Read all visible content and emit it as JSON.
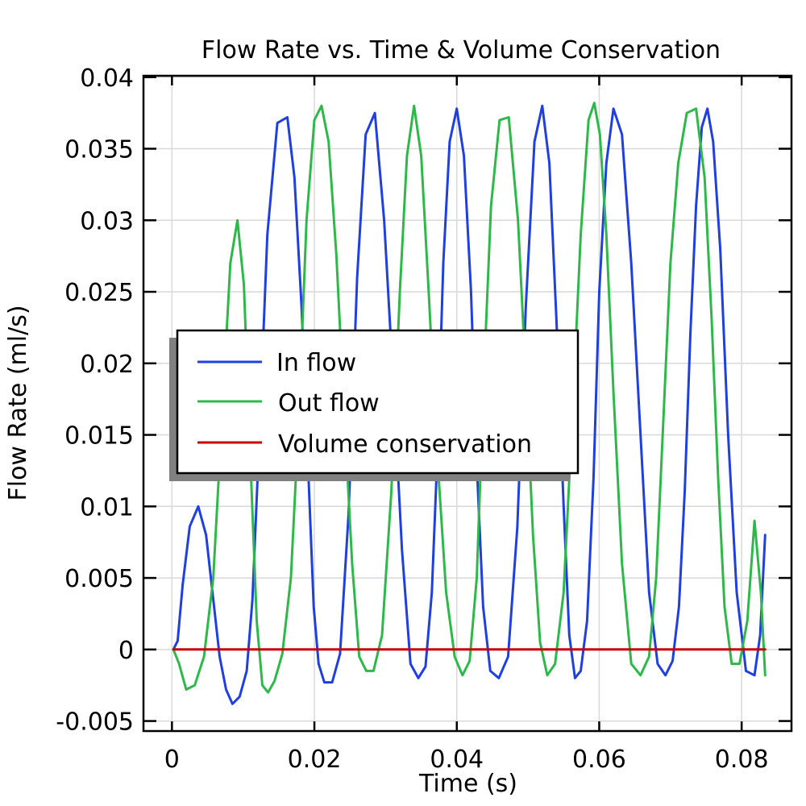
{
  "chart_data": {
    "type": "line",
    "title": "Flow Rate vs. Time & Volume Conservation",
    "xlabel": "Time (s)",
    "ylabel": "Flow Rate (ml/s)",
    "xlim": [
      -0.004,
      0.087
    ],
    "ylim": [
      -0.0057,
      0.0401
    ],
    "x_ticks": [
      0,
      0.02,
      0.04,
      0.06,
      0.08
    ],
    "x_tick_labels": [
      "0",
      "0.02",
      "0.04",
      "0.06",
      "0.08"
    ],
    "y_ticks": [
      -0.005,
      0,
      0.005,
      0.01,
      0.015,
      0.02,
      0.025,
      0.03,
      0.035,
      0.04
    ],
    "y_tick_labels": [
      "-0.005",
      "0",
      "0.005",
      "0.01",
      "0.015",
      "0.02",
      "0.025",
      "0.03",
      "0.035",
      "0.04"
    ],
    "grid": true,
    "legend_position": "center-left",
    "series": [
      {
        "name": "In flow",
        "color": "#1f3fe0",
        "x": [
          0.0002,
          0.0008,
          0.0015,
          0.0025,
          0.0037,
          0.0048,
          0.0058,
          0.0067,
          0.0076,
          0.0085,
          0.0095,
          0.0105,
          0.0113,
          0.0122,
          0.0134,
          0.0148,
          0.0162,
          0.0172,
          0.0182,
          0.0191,
          0.0199,
          0.0206,
          0.0214,
          0.0225,
          0.0236,
          0.0248,
          0.026,
          0.0272,
          0.0285,
          0.0298,
          0.0311,
          0.0323,
          0.0335,
          0.0346,
          0.0356,
          0.0365,
          0.0373,
          0.0381,
          0.039,
          0.04,
          0.041,
          0.042,
          0.0428,
          0.0437,
          0.0447,
          0.0459,
          0.0472,
          0.0485,
          0.0497,
          0.0509,
          0.052,
          0.053,
          0.054,
          0.055,
          0.0558,
          0.0566,
          0.0574,
          0.0583,
          0.0592,
          0.06,
          0.061,
          0.062,
          0.0632,
          0.0645,
          0.0658,
          0.067,
          0.0682,
          0.0693,
          0.0703,
          0.0712,
          0.072,
          0.0728,
          0.0736,
          0.0744,
          0.0752,
          0.076,
          0.077,
          0.0781,
          0.0793,
          0.0806,
          0.0818,
          0.0826,
          0.0833
        ],
        "y": [
          0.0,
          0.0006,
          0.0045,
          0.0086,
          0.01,
          0.008,
          0.0035,
          -0.0005,
          -0.0028,
          -0.0038,
          -0.0033,
          -0.0015,
          0.0035,
          0.014,
          0.029,
          0.0368,
          0.0372,
          0.033,
          0.024,
          0.013,
          0.003,
          -0.001,
          -0.0023,
          -0.0023,
          -0.0003,
          0.0095,
          0.026,
          0.036,
          0.0375,
          0.03,
          0.0185,
          0.007,
          -0.001,
          -0.002,
          -0.0012,
          0.004,
          0.014,
          0.027,
          0.0355,
          0.0378,
          0.0345,
          0.025,
          0.013,
          0.003,
          -0.0015,
          -0.002,
          -0.0005,
          0.0085,
          0.024,
          0.0355,
          0.038,
          0.034,
          0.023,
          0.01,
          0.001,
          -0.002,
          -0.0015,
          0.002,
          0.012,
          0.025,
          0.034,
          0.0378,
          0.036,
          0.027,
          0.015,
          0.004,
          -0.001,
          -0.0018,
          -0.0008,
          0.003,
          0.011,
          0.022,
          0.031,
          0.0365,
          0.0378,
          0.0355,
          0.028,
          0.015,
          0.004,
          -0.0015,
          -0.0018,
          0.001,
          0.008
        ]
      },
      {
        "name": "Out flow",
        "color": "#2eb84a",
        "x": [
          0.0002,
          0.001,
          0.002,
          0.0032,
          0.0045,
          0.0058,
          0.007,
          0.0082,
          0.0092,
          0.0101,
          0.011,
          0.0119,
          0.0127,
          0.0135,
          0.0144,
          0.0155,
          0.0167,
          0.0178,
          0.0189,
          0.02,
          0.021,
          0.022,
          0.0231,
          0.0243,
          0.0253,
          0.0263,
          0.0273,
          0.0283,
          0.0295,
          0.0308,
          0.032,
          0.033,
          0.034,
          0.035,
          0.036,
          0.0372,
          0.0385,
          0.0397,
          0.0408,
          0.0418,
          0.0428,
          0.0438,
          0.0448,
          0.046,
          0.0473,
          0.0486,
          0.0497,
          0.0507,
          0.0517,
          0.0527,
          0.0538,
          0.055,
          0.0562,
          0.0574,
          0.0585,
          0.0593,
          0.0601,
          0.061,
          0.062,
          0.0632,
          0.0645,
          0.0658,
          0.067,
          0.068,
          0.069,
          0.07,
          0.0711,
          0.0723,
          0.0736,
          0.0748,
          0.0758,
          0.0767,
          0.0776,
          0.0786,
          0.0797,
          0.0808,
          0.0818,
          0.0827,
          0.0833
        ],
        "y": [
          0.0,
          -0.001,
          -0.0028,
          -0.0025,
          -0.0005,
          0.005,
          0.016,
          0.027,
          0.03,
          0.0255,
          0.0135,
          0.002,
          -0.0025,
          -0.003,
          -0.0022,
          -0.0003,
          0.005,
          0.016,
          0.03,
          0.037,
          0.038,
          0.0355,
          0.0275,
          0.0155,
          0.006,
          -0.0005,
          -0.0015,
          -0.0015,
          0.001,
          0.011,
          0.025,
          0.0345,
          0.038,
          0.0345,
          0.0255,
          0.014,
          0.004,
          -0.0005,
          -0.0018,
          -0.0008,
          0.005,
          0.019,
          0.031,
          0.037,
          0.0372,
          0.03,
          0.019,
          0.008,
          0.0005,
          -0.0018,
          -0.001,
          0.004,
          0.016,
          0.029,
          0.037,
          0.0382,
          0.036,
          0.029,
          0.018,
          0.006,
          -0.001,
          -0.0018,
          -0.0005,
          0.005,
          0.016,
          0.027,
          0.034,
          0.0375,
          0.0378,
          0.033,
          0.023,
          0.012,
          0.003,
          -0.001,
          -0.001,
          0.002,
          0.009,
          0.004,
          -0.0018
        ]
      },
      {
        "name": "Volume conservation",
        "color": "#c8000a",
        "x": [
          0.0002,
          0.02,
          0.04,
          0.06,
          0.0833
        ],
        "y": [
          0,
          0,
          0,
          0,
          0
        ]
      }
    ]
  }
}
